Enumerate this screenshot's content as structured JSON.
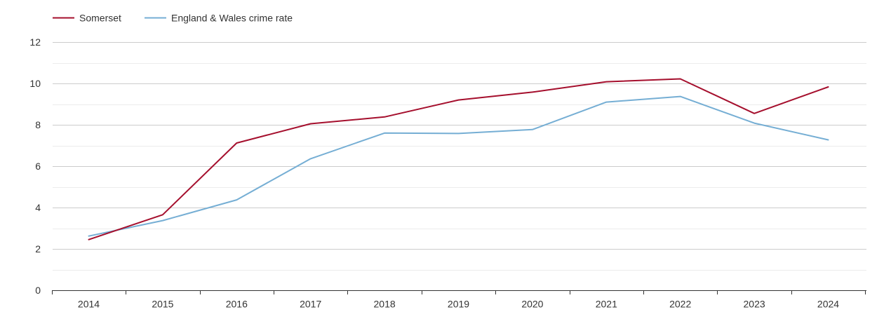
{
  "chart_data": {
    "type": "line",
    "title": "",
    "xlabel": "",
    "ylabel": "",
    "categories": [
      "2014",
      "2015",
      "2016",
      "2017",
      "2018",
      "2019",
      "2020",
      "2021",
      "2022",
      "2023",
      "2024"
    ],
    "ylim": [
      0,
      12
    ],
    "yticks": [
      0,
      2,
      4,
      6,
      8,
      10,
      12
    ],
    "ytick_labels": [
      "0",
      "2",
      "4",
      "6",
      "8",
      "10",
      "12"
    ],
    "minor_gridlines": [
      1,
      3,
      5,
      7,
      9,
      11
    ],
    "grid": true,
    "legend_position": "top-left",
    "series": [
      {
        "name": "Somerset",
        "color": "#a50f2d",
        "values": [
          2.45,
          3.65,
          7.12,
          8.05,
          8.38,
          9.2,
          9.58,
          10.08,
          10.22,
          8.55,
          9.83
        ]
      },
      {
        "name": "England & Wales crime rate",
        "color": "#75aed4",
        "values": [
          2.62,
          3.37,
          4.37,
          6.36,
          7.6,
          7.58,
          7.77,
          9.1,
          9.37,
          8.08,
          7.27
        ]
      }
    ]
  }
}
